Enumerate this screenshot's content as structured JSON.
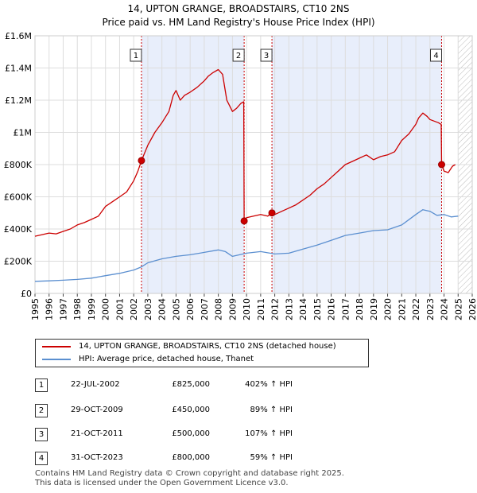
{
  "title_line1": "14, UPTON GRANGE, BROADSTAIRS, CT10 2NS",
  "title_line2": "Price paid vs. HM Land Registry's House Price Index (HPI)",
  "chart_data": {
    "type": "line",
    "title": "14, UPTON GRANGE, BROADSTAIRS, CT10 2NS — Price paid vs. HM Land Registry's House Price Index (HPI)",
    "xlabel": "",
    "ylabel": "",
    "xlim": [
      1995,
      2026
    ],
    "ylim": [
      0,
      1600000
    ],
    "x_ticks": [
      1995,
      1996,
      1997,
      1998,
      1999,
      2000,
      2001,
      2002,
      2003,
      2004,
      2005,
      2006,
      2007,
      2008,
      2009,
      2010,
      2011,
      2012,
      2013,
      2014,
      2015,
      2016,
      2017,
      2018,
      2019,
      2020,
      2021,
      2022,
      2023,
      2024,
      2025,
      2026
    ],
    "y_ticks": [
      0,
      200000,
      400000,
      600000,
      800000,
      1000000,
      1200000,
      1400000,
      1600000
    ],
    "y_tick_labels": [
      "£0",
      "£200K",
      "£400K",
      "£600K",
      "£800K",
      "£1M",
      "£1.2M",
      "£1.4M",
      "£1.6M"
    ],
    "grid": true,
    "future_hatch_from": 2025.0,
    "shaded_periods": [
      [
        2002.55,
        2009.83
      ],
      [
        2011.8,
        2023.83
      ]
    ],
    "series": [
      {
        "name": "14, UPTON GRANGE, BROADSTAIRS, CT10 2NS (detached house)",
        "color": "#cc0000",
        "x": [
          1995.0,
          1995.5,
          1996.0,
          1996.5,
          1997.0,
          1997.5,
          1998.0,
          1998.5,
          1999.0,
          1999.5,
          2000.0,
          2000.5,
          2001.0,
          2001.5,
          2002.0,
          2002.3,
          2002.55,
          2003.0,
          2003.5,
          2004.0,
          2004.5,
          2004.8,
          2005.0,
          2005.3,
          2005.6,
          2006.0,
          2006.5,
          2007.0,
          2007.3,
          2007.6,
          2008.0,
          2008.3,
          2008.6,
          2009.0,
          2009.3,
          2009.6,
          2009.8,
          2009.83,
          2010.0,
          2010.5,
          2011.0,
          2011.5,
          2011.8,
          2012.0,
          2012.5,
          2013.0,
          2013.5,
          2014.0,
          2014.5,
          2015.0,
          2015.5,
          2016.0,
          2016.5,
          2017.0,
          2017.5,
          2018.0,
          2018.5,
          2019.0,
          2019.5,
          2020.0,
          2020.5,
          2021.0,
          2021.5,
          2022.0,
          2022.2,
          2022.5,
          2022.8,
          2023.0,
          2023.3,
          2023.6,
          2023.8,
          2023.83,
          2024.0,
          2024.3,
          2024.6,
          2024.8
        ],
        "values": [
          355000,
          365000,
          375000,
          370000,
          385000,
          400000,
          425000,
          440000,
          460000,
          480000,
          540000,
          570000,
          600000,
          630000,
          700000,
          760000,
          825000,
          920000,
          1000000,
          1060000,
          1130000,
          1230000,
          1260000,
          1200000,
          1230000,
          1250000,
          1280000,
          1320000,
          1350000,
          1370000,
          1390000,
          1360000,
          1200000,
          1130000,
          1150000,
          1180000,
          1190000,
          450000,
          470000,
          480000,
          490000,
          480000,
          500000,
          490000,
          510000,
          530000,
          550000,
          580000,
          610000,
          650000,
          680000,
          720000,
          760000,
          800000,
          820000,
          840000,
          860000,
          830000,
          850000,
          860000,
          880000,
          950000,
          990000,
          1050000,
          1090000,
          1120000,
          1100000,
          1080000,
          1070000,
          1060000,
          1050000,
          800000,
          760000,
          750000,
          790000,
          800000
        ]
      },
      {
        "name": "HPI: Average price, detached house, Thanet",
        "color": "#5b8fd0",
        "x": [
          1995.0,
          1996.0,
          1997.0,
          1998.0,
          1999.0,
          2000.0,
          2001.0,
          2002.0,
          2002.55,
          2003.0,
          2004.0,
          2005.0,
          2006.0,
          2007.0,
          2008.0,
          2008.5,
          2009.0,
          2009.5,
          2010.0,
          2011.0,
          2012.0,
          2013.0,
          2014.0,
          2015.0,
          2016.0,
          2017.0,
          2018.0,
          2019.0,
          2020.0,
          2021.0,
          2022.0,
          2022.5,
          2023.0,
          2023.5,
          2024.0,
          2024.5,
          2025.0
        ],
        "values": [
          75000,
          78000,
          82000,
          87000,
          95000,
          110000,
          125000,
          145000,
          165000,
          190000,
          215000,
          230000,
          240000,
          255000,
          270000,
          260000,
          230000,
          240000,
          250000,
          260000,
          245000,
          250000,
          275000,
          300000,
          330000,
          360000,
          375000,
          390000,
          395000,
          425000,
          490000,
          520000,
          510000,
          485000,
          490000,
          475000,
          480000
        ]
      }
    ],
    "sales": [
      {
        "label": "1",
        "x": 2002.55,
        "value": 825000
      },
      {
        "label": "2",
        "x": 2009.83,
        "value": 450000
      },
      {
        "label": "3",
        "x": 2011.8,
        "value": 500000
      },
      {
        "label": "4",
        "x": 2023.83,
        "value": 800000
      }
    ]
  },
  "legend": {
    "property_label": "14, UPTON GRANGE, BROADSTAIRS, CT10 2NS (detached house)",
    "hpi_label": "HPI: Average price, detached house, Thanet"
  },
  "sales_table": [
    {
      "num": "1",
      "date": "22-JUL-2002",
      "price": "£825,000",
      "hpi": "402% ↑ HPI"
    },
    {
      "num": "2",
      "date": "29-OCT-2009",
      "price": "£450,000",
      "hpi": "89% ↑ HPI"
    },
    {
      "num": "3",
      "date": "21-OCT-2011",
      "price": "£500,000",
      "hpi": "107% ↑ HPI"
    },
    {
      "num": "4",
      "date": "31-OCT-2023",
      "price": "£800,000",
      "hpi": "59% ↑ HPI"
    }
  ],
  "footer": {
    "line1": "Contains HM Land Registry data © Crown copyright and database right 2025.",
    "line2": "This data is licensed under the Open Government Licence v3.0."
  }
}
